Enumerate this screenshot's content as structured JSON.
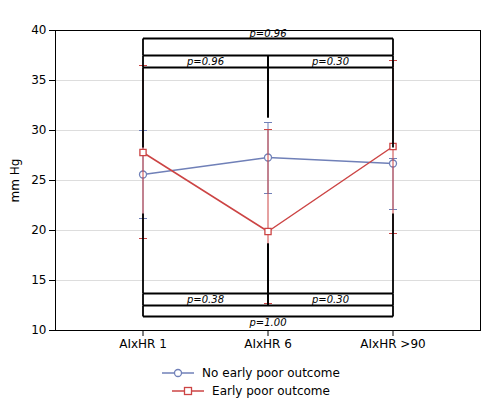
{
  "chart_data": {
    "type": "line",
    "categories": [
      "AIxHR 1",
      "AIxHR 6",
      "AIxHR >90"
    ],
    "series": [
      {
        "name": "No early poor outcome",
        "color": "#7080b8",
        "marker": "circle",
        "values": [
          25.6,
          27.3,
          26.7
        ],
        "ci_lower": [
          21.2,
          23.7,
          22.1
        ],
        "ci_upper": [
          30.0,
          30.8,
          27.2
        ]
      },
      {
        "name": "Early poor outcome",
        "color": "#cc4444",
        "marker": "square",
        "values": [
          27.8,
          19.9,
          28.4
        ],
        "ci_lower": [
          19.2,
          12.7,
          19.7
        ],
        "ci_upper": [
          36.5,
          30.1,
          37.0
        ]
      }
    ],
    "ylabel": "mm Hg",
    "ylim": [
      10,
      40
    ],
    "yticks": [
      10,
      15,
      20,
      25,
      30,
      35,
      40
    ],
    "grid": true,
    "legend": "bottom",
    "annotations": [
      {
        "text": "p=0.96",
        "kind": "bracket",
        "side": "top",
        "from": "AIxHR 1",
        "to": "AIxHR >90",
        "y": 39.2
      },
      {
        "text": "p=0.96",
        "kind": "box",
        "side": "top",
        "from": "AIxHR 1",
        "to": "AIxHR 6",
        "y": 37.5
      },
      {
        "text": "p=0.30",
        "kind": "box",
        "side": "top",
        "from": "AIxHR 6",
        "to": "AIxHR >90",
        "y": 37.5
      },
      {
        "text": "p=0.38",
        "kind": "box",
        "side": "bottom",
        "from": "AIxHR 1",
        "to": "AIxHR 6",
        "y": 12.5
      },
      {
        "text": "p=0.30",
        "kind": "box",
        "side": "bottom",
        "from": "AIxHR 6",
        "to": "AIxHR >90",
        "y": 12.5
      },
      {
        "text": "p=1.00",
        "kind": "bracket",
        "side": "bottom",
        "from": "AIxHR 1",
        "to": "AIxHR >90",
        "y": 11.4
      }
    ]
  }
}
